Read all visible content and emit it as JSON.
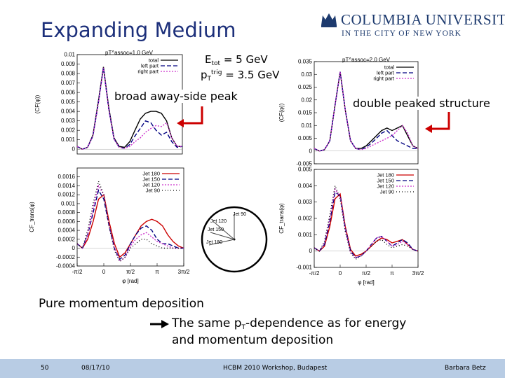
{
  "slide": {
    "title": "Expanding Medium",
    "logo_line1": "COLUMBIA UNIVERSITY",
    "logo_line2": "IN THE CITY OF NEW YORK",
    "energy_label": {
      "prefix": "E",
      "sub": "tot",
      "value": " = 5 GeV"
    },
    "trigger_label": {
      "prefix": "p",
      "sub": "T",
      "sup": "trig",
      "value": " = 3.5 GeV"
    },
    "callout_left": "broad away-side peak",
    "callout_right": "double peaked structure",
    "bottom_line1": "Pure momentum deposition",
    "bottom_line2_a": "The same p",
    "bottom_line2_sub": "T",
    "bottom_line2_b": "-dependence as for energy",
    "bottom_line3": "and momentum deposition",
    "colors": {
      "title": "#1c2f7a",
      "footer_bg": "#b8cce4",
      "arrow": "#cc0000"
    }
  },
  "footer": {
    "page": "50",
    "date": "08/17/10",
    "event": "HCBM 2010 Workshop, Budapest",
    "author": "Barbara Betz"
  },
  "inset": {
    "labels": [
      "Jet 90",
      "Jet 120",
      "Jet 150",
      "Jet 180"
    ]
  },
  "chart_data": [
    {
      "id": "top-left",
      "type": "line",
      "title": "pT^assoc=1.0 GeV",
      "ylabel": "(CF(φ))",
      "xlim": [
        -1.5708,
        4.7124
      ],
      "ylim": [
        -0.0005,
        0.01
      ],
      "yticks": [
        0,
        0.001,
        0.002,
        0.003,
        0.004,
        0.005,
        0.006,
        0.007,
        0.008,
        0.009,
        0.01
      ],
      "ytick_labels": [
        "0",
        "0.001",
        "0.002",
        "0.003",
        "0.004",
        "0.005",
        "0.006",
        "0.007",
        "0.008",
        "0.009",
        "0.01"
      ],
      "legend": "top-right",
      "x": [
        -1.5708,
        -1.26,
        -0.95,
        -0.63,
        -0.31,
        0,
        0.31,
        0.63,
        0.94,
        1.26,
        1.57,
        1.88,
        2.2,
        2.51,
        2.83,
        3.14,
        3.46,
        3.77,
        4.08,
        4.4,
        4.7124
      ],
      "series": [
        {
          "name": "total",
          "color": "#000000",
          "dash": "",
          "values": [
            0.0003,
            0.0,
            0.0002,
            0.0015,
            0.005,
            0.0087,
            0.0045,
            0.0012,
            0.0003,
            0.0002,
            0.0008,
            0.002,
            0.0032,
            0.0038,
            0.004,
            0.004,
            0.0038,
            0.003,
            0.0012,
            0.0003,
            0.0003
          ]
        },
        {
          "name": "left part",
          "color": "#000080",
          "dash": "6,3",
          "values": [
            0.0003,
            0.0,
            0.0002,
            0.0014,
            0.0048,
            0.0086,
            0.0043,
            0.0011,
            0.0002,
            0.0001,
            0.0005,
            0.0014,
            0.0022,
            0.003,
            0.0028,
            0.002,
            0.0015,
            0.0018,
            0.0008,
            0.0002,
            0.0003
          ]
        },
        {
          "name": "right part",
          "color": "#cc33cc",
          "dash": "2,2",
          "values": [
            0.0003,
            0.0,
            0.0002,
            0.0014,
            0.0048,
            0.0086,
            0.0043,
            0.0011,
            0.0002,
            0.0001,
            0.0003,
            0.0008,
            0.0012,
            0.0018,
            0.0022,
            0.0025,
            0.0024,
            0.0028,
            0.0012,
            0.0003,
            0.0003
          ]
        }
      ]
    },
    {
      "id": "bottom-left",
      "type": "line",
      "ylabel": "CF_trans(φ)",
      "xlabel": "φ [rad]",
      "xlim": [
        -1.5708,
        4.7124
      ],
      "xticks": [
        -1.5708,
        0,
        1.5708,
        3.1416,
        4.7124
      ],
      "xtick_labels": [
        "-π/2",
        "0",
        "π/2",
        "π",
        "3π/2"
      ],
      "ylim": [
        -0.0004,
        0.0018
      ],
      "yticks": [
        -0.0004,
        -0.0002,
        0,
        0.0002,
        0.0004,
        0.0006,
        0.0008,
        0.001,
        0.0012,
        0.0014,
        0.0016
      ],
      "ytick_labels": [
        "-0.0004",
        "-0.0002",
        "0",
        "0.0002",
        "0.0004",
        "0.0006",
        "0.0008",
        "0.001",
        "0.0012",
        "0.0014",
        "0.0016"
      ],
      "legend": "top-right",
      "x": [
        -1.5708,
        -1.26,
        -0.95,
        -0.63,
        -0.31,
        0,
        0.31,
        0.63,
        0.94,
        1.26,
        1.57,
        1.88,
        2.2,
        2.51,
        2.83,
        3.14,
        3.46,
        3.77,
        4.08,
        4.4,
        4.7124
      ],
      "series": [
        {
          "name": "Jet 180",
          "color": "#cc0000",
          "dash": "",
          "values": [
            0.0001,
            0.0,
            0.0002,
            0.0006,
            0.0011,
            0.0012,
            0.0006,
            0.0001,
            -0.0002,
            -0.0001,
            0.0001,
            0.0003,
            0.0005,
            0.0006,
            0.00065,
            0.0006,
            0.0005,
            0.0003,
            0.00015,
            5e-05,
            0.0
          ]
        },
        {
          "name": "Jet 150",
          "color": "#000080",
          "dash": "6,3",
          "values": [
            0.0001,
            0.0,
            0.0003,
            0.0008,
            0.0013,
            0.0011,
            0.0005,
            0.0,
            -0.00025,
            -0.00015,
            0.0001,
            0.0003,
            0.00045,
            0.0005,
            0.0004,
            0.0002,
            0.0001,
            0.0001,
            5e-05,
            0.0,
            0.0
          ]
        },
        {
          "name": "Jet 120",
          "color": "#cc33cc",
          "dash": "2,2",
          "values": [
            0.0001,
            0.0,
            0.0003,
            0.0009,
            0.0014,
            0.0012,
            0.0005,
            0.0,
            -0.0003,
            -0.0002,
            5e-05,
            0.0002,
            0.0003,
            0.00035,
            0.00025,
            0.00015,
            0.0001,
            5e-05,
            0.0,
            0.0,
            0.0
          ]
        },
        {
          "name": "Jet 90",
          "color": "#000000",
          "dash": "1,3",
          "values": [
            0.0001,
            0.0,
            0.0004,
            0.001,
            0.0015,
            0.0012,
            0.0005,
            -5e-05,
            -0.0003,
            -0.0002,
            0.0,
            0.0001,
            0.0002,
            0.0002,
            0.0001,
            5e-05,
            0.0,
            0.0,
            0.0,
            0.0,
            0.0
          ]
        }
      ]
    },
    {
      "id": "top-right",
      "type": "line",
      "title": "pT^assoc=2.0 GeV",
      "ylabel": "(CF(φ))",
      "xlim": [
        -1.5708,
        4.7124
      ],
      "ylim": [
        -0.005,
        0.035
      ],
      "yticks": [
        -0.005,
        0,
        0.005,
        0.01,
        0.015,
        0.02,
        0.025,
        0.03,
        0.035
      ],
      "ytick_labels": [
        "-0.005",
        "0",
        "0.005",
        "0.01",
        "0.015",
        "0.02",
        "0.025",
        "0.03",
        "0.035"
      ],
      "legend": "top-right",
      "x": [
        -1.5708,
        -1.26,
        -0.95,
        -0.63,
        -0.31,
        0,
        0.31,
        0.63,
        0.94,
        1.26,
        1.57,
        1.88,
        2.2,
        2.51,
        2.83,
        3.14,
        3.46,
        3.77,
        4.08,
        4.4,
        4.7124
      ],
      "series": [
        {
          "name": "total",
          "color": "#000000",
          "dash": "",
          "values": [
            0.001,
            0.0,
            0.0005,
            0.004,
            0.018,
            0.031,
            0.016,
            0.004,
            0.001,
            0.001,
            0.002,
            0.004,
            0.006,
            0.008,
            0.009,
            0.008,
            0.009,
            0.01,
            0.006,
            0.002,
            0.001
          ]
        },
        {
          "name": "left part",
          "color": "#000080",
          "dash": "6,3",
          "values": [
            0.001,
            0.0,
            0.0005,
            0.004,
            0.018,
            0.031,
            0.016,
            0.004,
            0.001,
            0.0005,
            0.0015,
            0.003,
            0.005,
            0.007,
            0.008,
            0.006,
            0.004,
            0.003,
            0.002,
            0.001,
            0.001
          ]
        },
        {
          "name": "right part",
          "color": "#cc33cc",
          "dash": "2,2",
          "values": [
            0.001,
            0.0,
            0.0005,
            0.004,
            0.018,
            0.031,
            0.016,
            0.004,
            0.001,
            0.0005,
            0.001,
            0.002,
            0.003,
            0.004,
            0.005,
            0.006,
            0.008,
            0.01,
            0.007,
            0.002,
            0.001
          ]
        }
      ]
    },
    {
      "id": "bottom-right",
      "type": "line",
      "ylabel": "CF_trans(φ)",
      "xlabel": "φ [rad]",
      "xlim": [
        -1.5708,
        4.7124
      ],
      "xticks": [
        -1.5708,
        0,
        1.5708,
        3.1416,
        4.7124
      ],
      "xtick_labels": [
        "-π/2",
        "0",
        "π/2",
        "π",
        "3π/2"
      ],
      "ylim": [
        -0.001,
        0.005
      ],
      "yticks": [
        -0.001,
        0,
        0.001,
        0.002,
        0.003,
        0.004,
        0.005
      ],
      "ytick_labels": [
        "-0.001",
        "0",
        "0.001",
        "0.002",
        "0.003",
        "0.004",
        "0.005"
      ],
      "legend": "top-right",
      "x": [
        -1.5708,
        -1.26,
        -0.95,
        -0.63,
        -0.31,
        0,
        0.31,
        0.63,
        0.94,
        1.26,
        1.57,
        1.88,
        2.2,
        2.51,
        2.83,
        3.14,
        3.46,
        3.77,
        4.08,
        4.4,
        4.7124
      ],
      "series": [
        {
          "name": "Jet 180",
          "color": "#cc0000",
          "dash": "",
          "values": [
            0.0002,
            0.0,
            0.0003,
            0.0015,
            0.0032,
            0.0035,
            0.0015,
            0.0001,
            -0.0003,
            -0.0002,
            0.0,
            0.0003,
            0.0006,
            0.0008,
            0.0007,
            0.0005,
            0.0006,
            0.0007,
            0.0004,
            0.0001,
            0.0
          ]
        },
        {
          "name": "Jet 150",
          "color": "#000080",
          "dash": "6,3",
          "values": [
            0.0002,
            0.0,
            0.0004,
            0.0018,
            0.0036,
            0.0034,
            0.0014,
            0.0,
            -0.0004,
            -0.0003,
            0.0,
            0.0004,
            0.0008,
            0.0009,
            0.0006,
            0.0003,
            0.0005,
            0.0007,
            0.0005,
            0.0001,
            0.0
          ]
        },
        {
          "name": "Jet 120",
          "color": "#cc33cc",
          "dash": "2,2",
          "values": [
            0.0002,
            0.0,
            0.0005,
            0.002,
            0.0038,
            0.0033,
            0.0013,
            -0.0001,
            -0.0004,
            -0.0003,
            0.0,
            0.0004,
            0.0008,
            0.0009,
            0.0006,
            0.0003,
            0.0004,
            0.0006,
            0.0004,
            0.0001,
            0.0
          ]
        },
        {
          "name": "Jet 90",
          "color": "#000000",
          "dash": "1,3",
          "values": [
            0.0002,
            0.0,
            0.0006,
            0.0022,
            0.004,
            0.0032,
            0.0012,
            -0.0001,
            -0.0005,
            -0.0003,
            0.0,
            0.0003,
            0.0006,
            0.0007,
            0.0004,
            0.0002,
            0.0003,
            0.0004,
            0.0003,
            0.0001,
            0.0
          ]
        }
      ]
    }
  ]
}
